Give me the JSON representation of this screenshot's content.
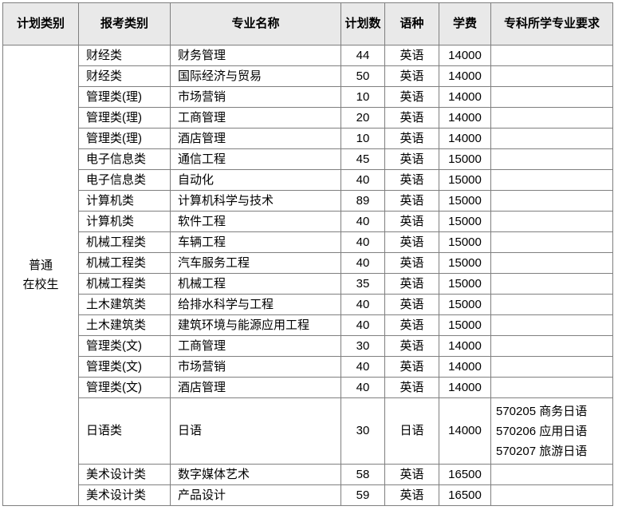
{
  "table": {
    "headers": {
      "plan_category": "计划类别",
      "exam_category": "报考类别",
      "major_name": "专业名称",
      "plan_count": "计划数",
      "language": "语种",
      "tuition": "学费",
      "requirements": "专科所学专业要求"
    },
    "plan_category": "普通\n在校生",
    "rows": [
      {
        "category": "财经类",
        "major": "财务管理",
        "count": "44",
        "language": "英语",
        "tuition": "14000",
        "requirements": ""
      },
      {
        "category": "财经类",
        "major": "国际经济与贸易",
        "count": "50",
        "language": "英语",
        "tuition": "14000",
        "requirements": ""
      },
      {
        "category": "管理类(理)",
        "major": "市场营销",
        "count": "10",
        "language": "英语",
        "tuition": "14000",
        "requirements": ""
      },
      {
        "category": "管理类(理)",
        "major": "工商管理",
        "count": "20",
        "language": "英语",
        "tuition": "14000",
        "requirements": ""
      },
      {
        "category": "管理类(理)",
        "major": "酒店管理",
        "count": "10",
        "language": "英语",
        "tuition": "14000",
        "requirements": ""
      },
      {
        "category": "电子信息类",
        "major": "通信工程",
        "count": "45",
        "language": "英语",
        "tuition": "15000",
        "requirements": ""
      },
      {
        "category": "电子信息类",
        "major": "自动化",
        "count": "40",
        "language": "英语",
        "tuition": "15000",
        "requirements": ""
      },
      {
        "category": "计算机类",
        "major": "计算机科学与技术",
        "count": "89",
        "language": "英语",
        "tuition": "15000",
        "requirements": ""
      },
      {
        "category": "计算机类",
        "major": "软件工程",
        "count": "40",
        "language": "英语",
        "tuition": "15000",
        "requirements": ""
      },
      {
        "category": "机械工程类",
        "major": "车辆工程",
        "count": "40",
        "language": "英语",
        "tuition": "15000",
        "requirements": ""
      },
      {
        "category": "机械工程类",
        "major": "汽车服务工程",
        "count": "40",
        "language": "英语",
        "tuition": "15000",
        "requirements": ""
      },
      {
        "category": "机械工程类",
        "major": "机械工程",
        "count": "35",
        "language": "英语",
        "tuition": "15000",
        "requirements": ""
      },
      {
        "category": "土木建筑类",
        "major": "给排水科学与工程",
        "count": "40",
        "language": "英语",
        "tuition": "15000",
        "requirements": ""
      },
      {
        "category": "土木建筑类",
        "major": "建筑环境与能源应用工程",
        "count": "40",
        "language": "英语",
        "tuition": "15000",
        "requirements": ""
      },
      {
        "category": "管理类(文)",
        "major": "工商管理",
        "count": "30",
        "language": "英语",
        "tuition": "14000",
        "requirements": ""
      },
      {
        "category": "管理类(文)",
        "major": "市场营销",
        "count": "40",
        "language": "英语",
        "tuition": "14000",
        "requirements": ""
      },
      {
        "category": "管理类(文)",
        "major": "酒店管理",
        "count": "40",
        "language": "英语",
        "tuition": "14000",
        "requirements": ""
      },
      {
        "category": "日语类",
        "major": "日语",
        "count": "30",
        "language": "日语",
        "tuition": "14000",
        "requirements": "570205 商务日语\n570206 应用日语\n570207 旅游日语"
      },
      {
        "category": "美术设计类",
        "major": "数字媒体艺术",
        "count": "58",
        "language": "英语",
        "tuition": "16500",
        "requirements": ""
      },
      {
        "category": "美术设计类",
        "major": "产品设计",
        "count": "59",
        "language": "英语",
        "tuition": "16500",
        "requirements": ""
      }
    ]
  },
  "colors": {
    "header_bg": "#e9e9e9",
    "border": "#7f7f7f",
    "text": "#000000"
  }
}
